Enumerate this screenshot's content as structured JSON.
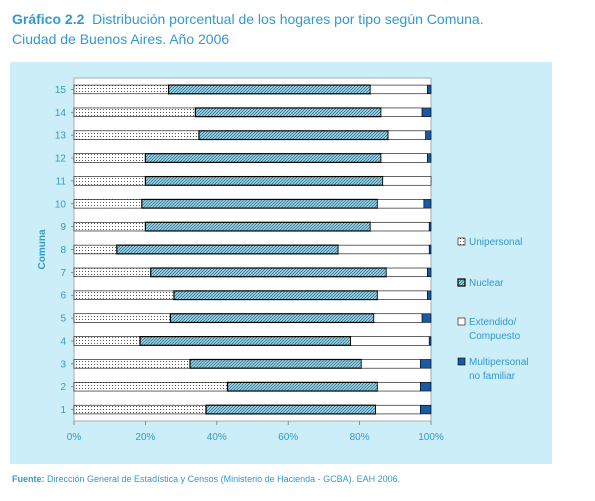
{
  "title": {
    "prefix": "Gráfico 2.2",
    "line1": "Distribución porcentual de los hogares por tipo según Comuna.",
    "line2": "Ciudad de Buenos Aires. Año 2006"
  },
  "source": {
    "label": "Fuente:",
    "text": "Dirección General de Estadística y Censos (Ministerio de Hacienda - GCBA). EAH 2006."
  },
  "chart_data": {
    "type": "bar",
    "orientation": "horizontal",
    "stacked": "percent",
    "ylabel": "Comuna",
    "categories": [
      "1",
      "2",
      "3",
      "4",
      "5",
      "6",
      "7",
      "8",
      "9",
      "10",
      "11",
      "12",
      "13",
      "14",
      "15"
    ],
    "x_ticks": [
      "0%",
      "20%",
      "40%",
      "60%",
      "80%",
      "100%"
    ],
    "xlim": [
      0,
      100
    ],
    "legend_position": "right",
    "series": [
      {
        "name": "Unipersonal",
        "values": [
          37.0,
          43.0,
          32.5,
          18.5,
          27.0,
          28.0,
          21.5,
          12.0,
          20.0,
          19.0,
          20.0,
          20.0,
          35.0,
          34.0,
          26.5
        ]
      },
      {
        "name": "Nuclear",
        "values": [
          47.5,
          42.0,
          48.0,
          59.0,
          57.0,
          57.0,
          66.0,
          62.0,
          63.0,
          66.0,
          66.5,
          66.0,
          53.0,
          52.0,
          56.5
        ]
      },
      {
        "name": "Extendido/ Compuesto",
        "values": [
          12.5,
          12.0,
          16.5,
          22.0,
          13.5,
          14.0,
          11.5,
          25.5,
          16.5,
          13.0,
          13.5,
          13.0,
          10.5,
          11.5,
          16.0
        ]
      },
      {
        "name": "Multipersonal no familiar",
        "values": [
          3.0,
          3.0,
          3.0,
          0.5,
          2.5,
          1.0,
          1.0,
          0.5,
          0.5,
          2.0,
          0.0,
          1.0,
          1.5,
          2.5,
          1.0
        ]
      }
    ],
    "legend_lines": [
      [
        "Unipersonal"
      ],
      [
        "Nuclear"
      ],
      [
        "Extendido/",
        "Compuesto"
      ],
      [
        "Multipersonal",
        "no familiar"
      ]
    ],
    "colors": {
      "panel": "#cceef8",
      "plot": "#ffffff",
      "text": "#3399cc",
      "bar_outline": "#000000",
      "nuclear_fill": "#a8dcec",
      "multipersonal_fill": "#1a5aa0"
    }
  }
}
